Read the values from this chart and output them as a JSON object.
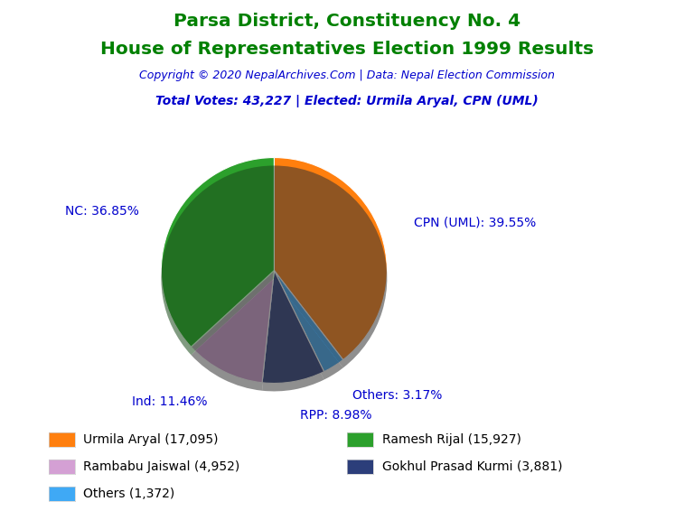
{
  "title_line1": "Parsa District, Constituency No. 4",
  "title_line2": "House of Representatives Election 1999 Results",
  "title_color": "#008000",
  "copyright_text": "Copyright © 2020 NepalArchives.Com | Data: Nepal Election Commission",
  "copyright_color": "#0000cd",
  "subtitle_text": "Total Votes: 43,227 | Elected: Urmila Aryal, CPN (UML)",
  "subtitle_color": "#0000cd",
  "slices": [
    {
      "label": "CPN (UML): 39.55%",
      "value": 17095,
      "color": "#ff7f0e",
      "pct": 39.55
    },
    {
      "label": "Others: 3.17%",
      "value": 1372,
      "color": "#3fa9f5",
      "pct": 3.17
    },
    {
      "label": "RPP: 8.98%",
      "value": 3881,
      "color": "#2c3e7a",
      "pct": 8.98
    },
    {
      "label": "Ind: 11.46%",
      "value": 4952,
      "color": "#d4a0d4",
      "pct": 11.46
    },
    {
      "label": "NC: 36.85%",
      "value": 15927,
      "color": "#2ca02c",
      "pct": 36.85
    }
  ],
  "legend_entries": [
    {
      "label": "Urmila Aryal (17,095)",
      "color": "#ff7f0e"
    },
    {
      "label": "Ramesh Rijal (15,927)",
      "color": "#2ca02c"
    },
    {
      "label": "Rambabu Jaiswal (4,952)",
      "color": "#d4a0d4"
    },
    {
      "label": "Gokhul Prasad Kurmi (3,881)",
      "color": "#2c3e7a"
    },
    {
      "label": "Others (1,372)",
      "color": "#3fa9f5"
    }
  ],
  "label_color": "#0000cd",
  "background_color": "#ffffff",
  "start_angle": 90
}
